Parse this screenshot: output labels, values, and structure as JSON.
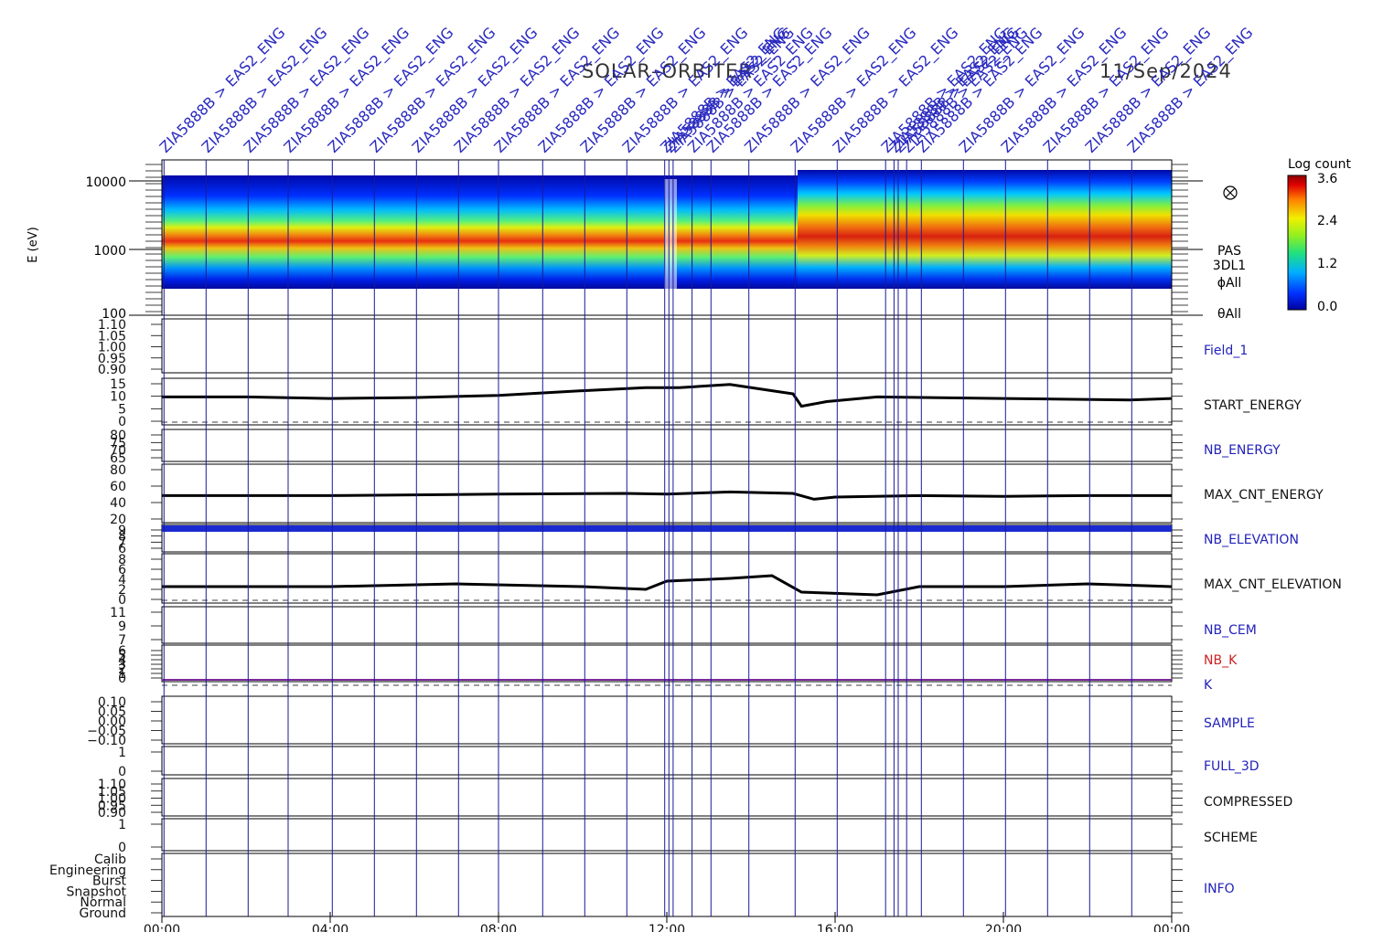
{
  "header": {
    "mission": "SOLAR–ORBITER",
    "date": "11/Sep/2024"
  },
  "colorbar": {
    "title": "Log count",
    "ticks": [
      "3.6",
      "2.4",
      "1.2",
      "0.0"
    ]
  },
  "spectrogram": {
    "ylabel": "E (eV)",
    "yticks": [
      "10000",
      "1000",
      "100"
    ],
    "side_labels": [
      "PAS",
      "3DL1",
      "ϕAll",
      "θAll"
    ]
  },
  "event_label": "ZIA5888B > EAS2_ENG",
  "colors": {
    "event_line": "#1a1a9a",
    "blue_label": "#2222bb",
    "red_label": "#cc2222",
    "purple_line": "#7a2a9a"
  },
  "chart_data": {
    "type": "line",
    "x_range": [
      "00:00",
      "24:00"
    ],
    "xticks": [
      "00:00",
      "04:00",
      "08:00",
      "12:00",
      "16:00",
      "20:00",
      "00:00"
    ],
    "event_times_h": [
      0.05,
      1.05,
      2.05,
      3.0,
      4.05,
      5.05,
      6.05,
      7.05,
      8.0,
      9.05,
      10.05,
      11.05,
      11.95,
      12.05,
      12.15,
      12.6,
      13.05,
      13.95,
      15.05,
      16.05,
      17.2,
      17.4,
      17.5,
      17.7,
      18.05,
      19.05,
      20.05,
      21.05,
      22.05,
      23.05
    ],
    "spectrum_band_energy_eV": [
      {
        "t": 0,
        "peak": 1150
      },
      {
        "t": 4,
        "peak": 1100
      },
      {
        "t": 8,
        "peak": 1050
      },
      {
        "t": 12,
        "peak": 950
      },
      {
        "t": 15,
        "peak": 900
      },
      {
        "t": 15.2,
        "peak": 1400
      },
      {
        "t": 17,
        "peak": 1300
      },
      {
        "t": 20,
        "peak": 1200
      },
      {
        "t": 24,
        "peak": 1200
      }
    ],
    "panels": [
      {
        "name": "Field_1",
        "label_color": "blue",
        "yticks": [
          "1.10",
          "1.05",
          "1.00",
          "0.95",
          "0.90"
        ],
        "ylim": [
          0.9,
          1.1
        ]
      },
      {
        "name": "START_ENERGY",
        "label_color": "black",
        "yticks": [
          "15",
          "10",
          "5",
          "0"
        ],
        "ylim": [
          0,
          15
        ],
        "series": [
          [
            0,
            9
          ],
          [
            2,
            9
          ],
          [
            4,
            8.5
          ],
          [
            6,
            8.8
          ],
          [
            8,
            9.5
          ],
          [
            10,
            11
          ],
          [
            11.5,
            12
          ],
          [
            12.3,
            12
          ],
          [
            13.5,
            13
          ],
          [
            14.5,
            11
          ],
          [
            15,
            10
          ],
          [
            15.2,
            6
          ],
          [
            15.8,
            7.5
          ],
          [
            17,
            9
          ],
          [
            20,
            8.5
          ],
          [
            23,
            8
          ],
          [
            24,
            8.5
          ]
        ]
      },
      {
        "name": "NB_ENERGY",
        "label_color": "blue",
        "yticks": [
          "80",
          "75",
          "70",
          "65"
        ],
        "ylim": [
          62,
          82
        ]
      },
      {
        "name": "MAX_CNT_ENERGY",
        "label_color": "black",
        "yticks": [
          "80",
          "60",
          "40",
          "20"
        ],
        "ylim": [
          10,
          90
        ],
        "series": [
          [
            0,
            47
          ],
          [
            4,
            47
          ],
          [
            8,
            49
          ],
          [
            11,
            50
          ],
          [
            12,
            49
          ],
          [
            13.5,
            52
          ],
          [
            15,
            50
          ],
          [
            15.5,
            42
          ],
          [
            16,
            45
          ],
          [
            18,
            47
          ],
          [
            20,
            46
          ],
          [
            22,
            47
          ],
          [
            24,
            47
          ]
        ]
      },
      {
        "name": "NB_ELEVATION",
        "label_color": "blue",
        "yticks": [
          "9",
          "8",
          "7",
          "6"
        ],
        "ylim": [
          6,
          9.5
        ]
      },
      {
        "name": "MAX_CNT_ELEVATION",
        "label_color": "black",
        "yticks": [
          "8",
          "6",
          "4",
          "2",
          "0"
        ],
        "ylim": [
          0,
          9
        ],
        "series": [
          [
            0,
            3
          ],
          [
            4,
            3
          ],
          [
            7,
            3.5
          ],
          [
            10,
            3
          ],
          [
            11.5,
            2.5
          ],
          [
            12,
            4
          ],
          [
            13.5,
            4.5
          ],
          [
            14.5,
            5
          ],
          [
            15.2,
            2
          ],
          [
            17,
            1.5
          ],
          [
            18,
            3
          ],
          [
            20,
            3
          ],
          [
            22,
            3.5
          ],
          [
            24,
            3
          ]
        ]
      },
      {
        "name": "NB_CEM",
        "label_color": "blue",
        "yticks": [
          "11",
          "9",
          "7"
        ],
        "ylim": [
          7,
          11
        ]
      },
      {
        "name": "NB_K",
        "label_color": "red",
        "yticks": [
          "6",
          "5",
          "4",
          "3",
          "2",
          "1",
          "0"
        ],
        "ylim": [
          0,
          6.5
        ]
      },
      {
        "name": "K",
        "label_color": "blue",
        "yticks": [],
        "ylim": [
          0,
          6.5
        ]
      },
      {
        "name": "SAMPLE",
        "label_color": "blue",
        "yticks": [
          "0.10",
          "0.05",
          "0.00",
          "−0.05",
          "−0.10"
        ],
        "ylim": [
          -0.1,
          0.1
        ]
      },
      {
        "name": "FULL_3D",
        "label_color": "blue",
        "yticks": [
          "1",
          "0"
        ],
        "ylim": [
          0,
          1
        ]
      },
      {
        "name": "COMPRESSED",
        "label_color": "black",
        "yticks": [
          "1.10",
          "1.05",
          "1.00",
          "0.95",
          "0.90"
        ],
        "ylim": [
          0.9,
          1.1
        ]
      },
      {
        "name": "SCHEME",
        "label_color": "black",
        "yticks": [
          "1",
          "0"
        ],
        "ylim": [
          0,
          1
        ]
      },
      {
        "name": "INFO",
        "label_color": "blue",
        "yticks": [
          "Calib",
          "Engineering",
          "Burst",
          "Snapshot",
          "Normal",
          "Ground"
        ]
      }
    ]
  }
}
